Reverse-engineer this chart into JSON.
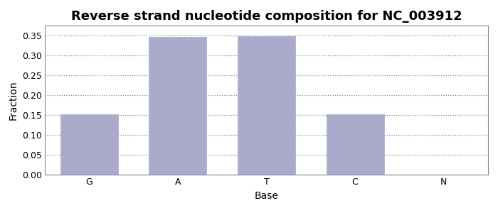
{
  "title": "Reverse strand nucleotide composition for NC_003912",
  "categories": [
    "G",
    "A",
    "T",
    "C",
    "N"
  ],
  "values": [
    0.152,
    0.347,
    0.348,
    0.151,
    0.0
  ],
  "bar_color": "#aaaacc",
  "bar_edgecolor": "#aaaacc",
  "xlabel": "Base",
  "ylabel": "Fraction",
  "ylim": [
    0.0,
    0.375
  ],
  "yticks": [
    0.0,
    0.05,
    0.1,
    0.15,
    0.2,
    0.25,
    0.3,
    0.35
  ],
  "title_fontsize": 13,
  "axis_label_fontsize": 10,
  "tick_fontsize": 9,
  "grid_color": "#888899",
  "bg_color": "#ffffff",
  "spine_color": "#888888"
}
